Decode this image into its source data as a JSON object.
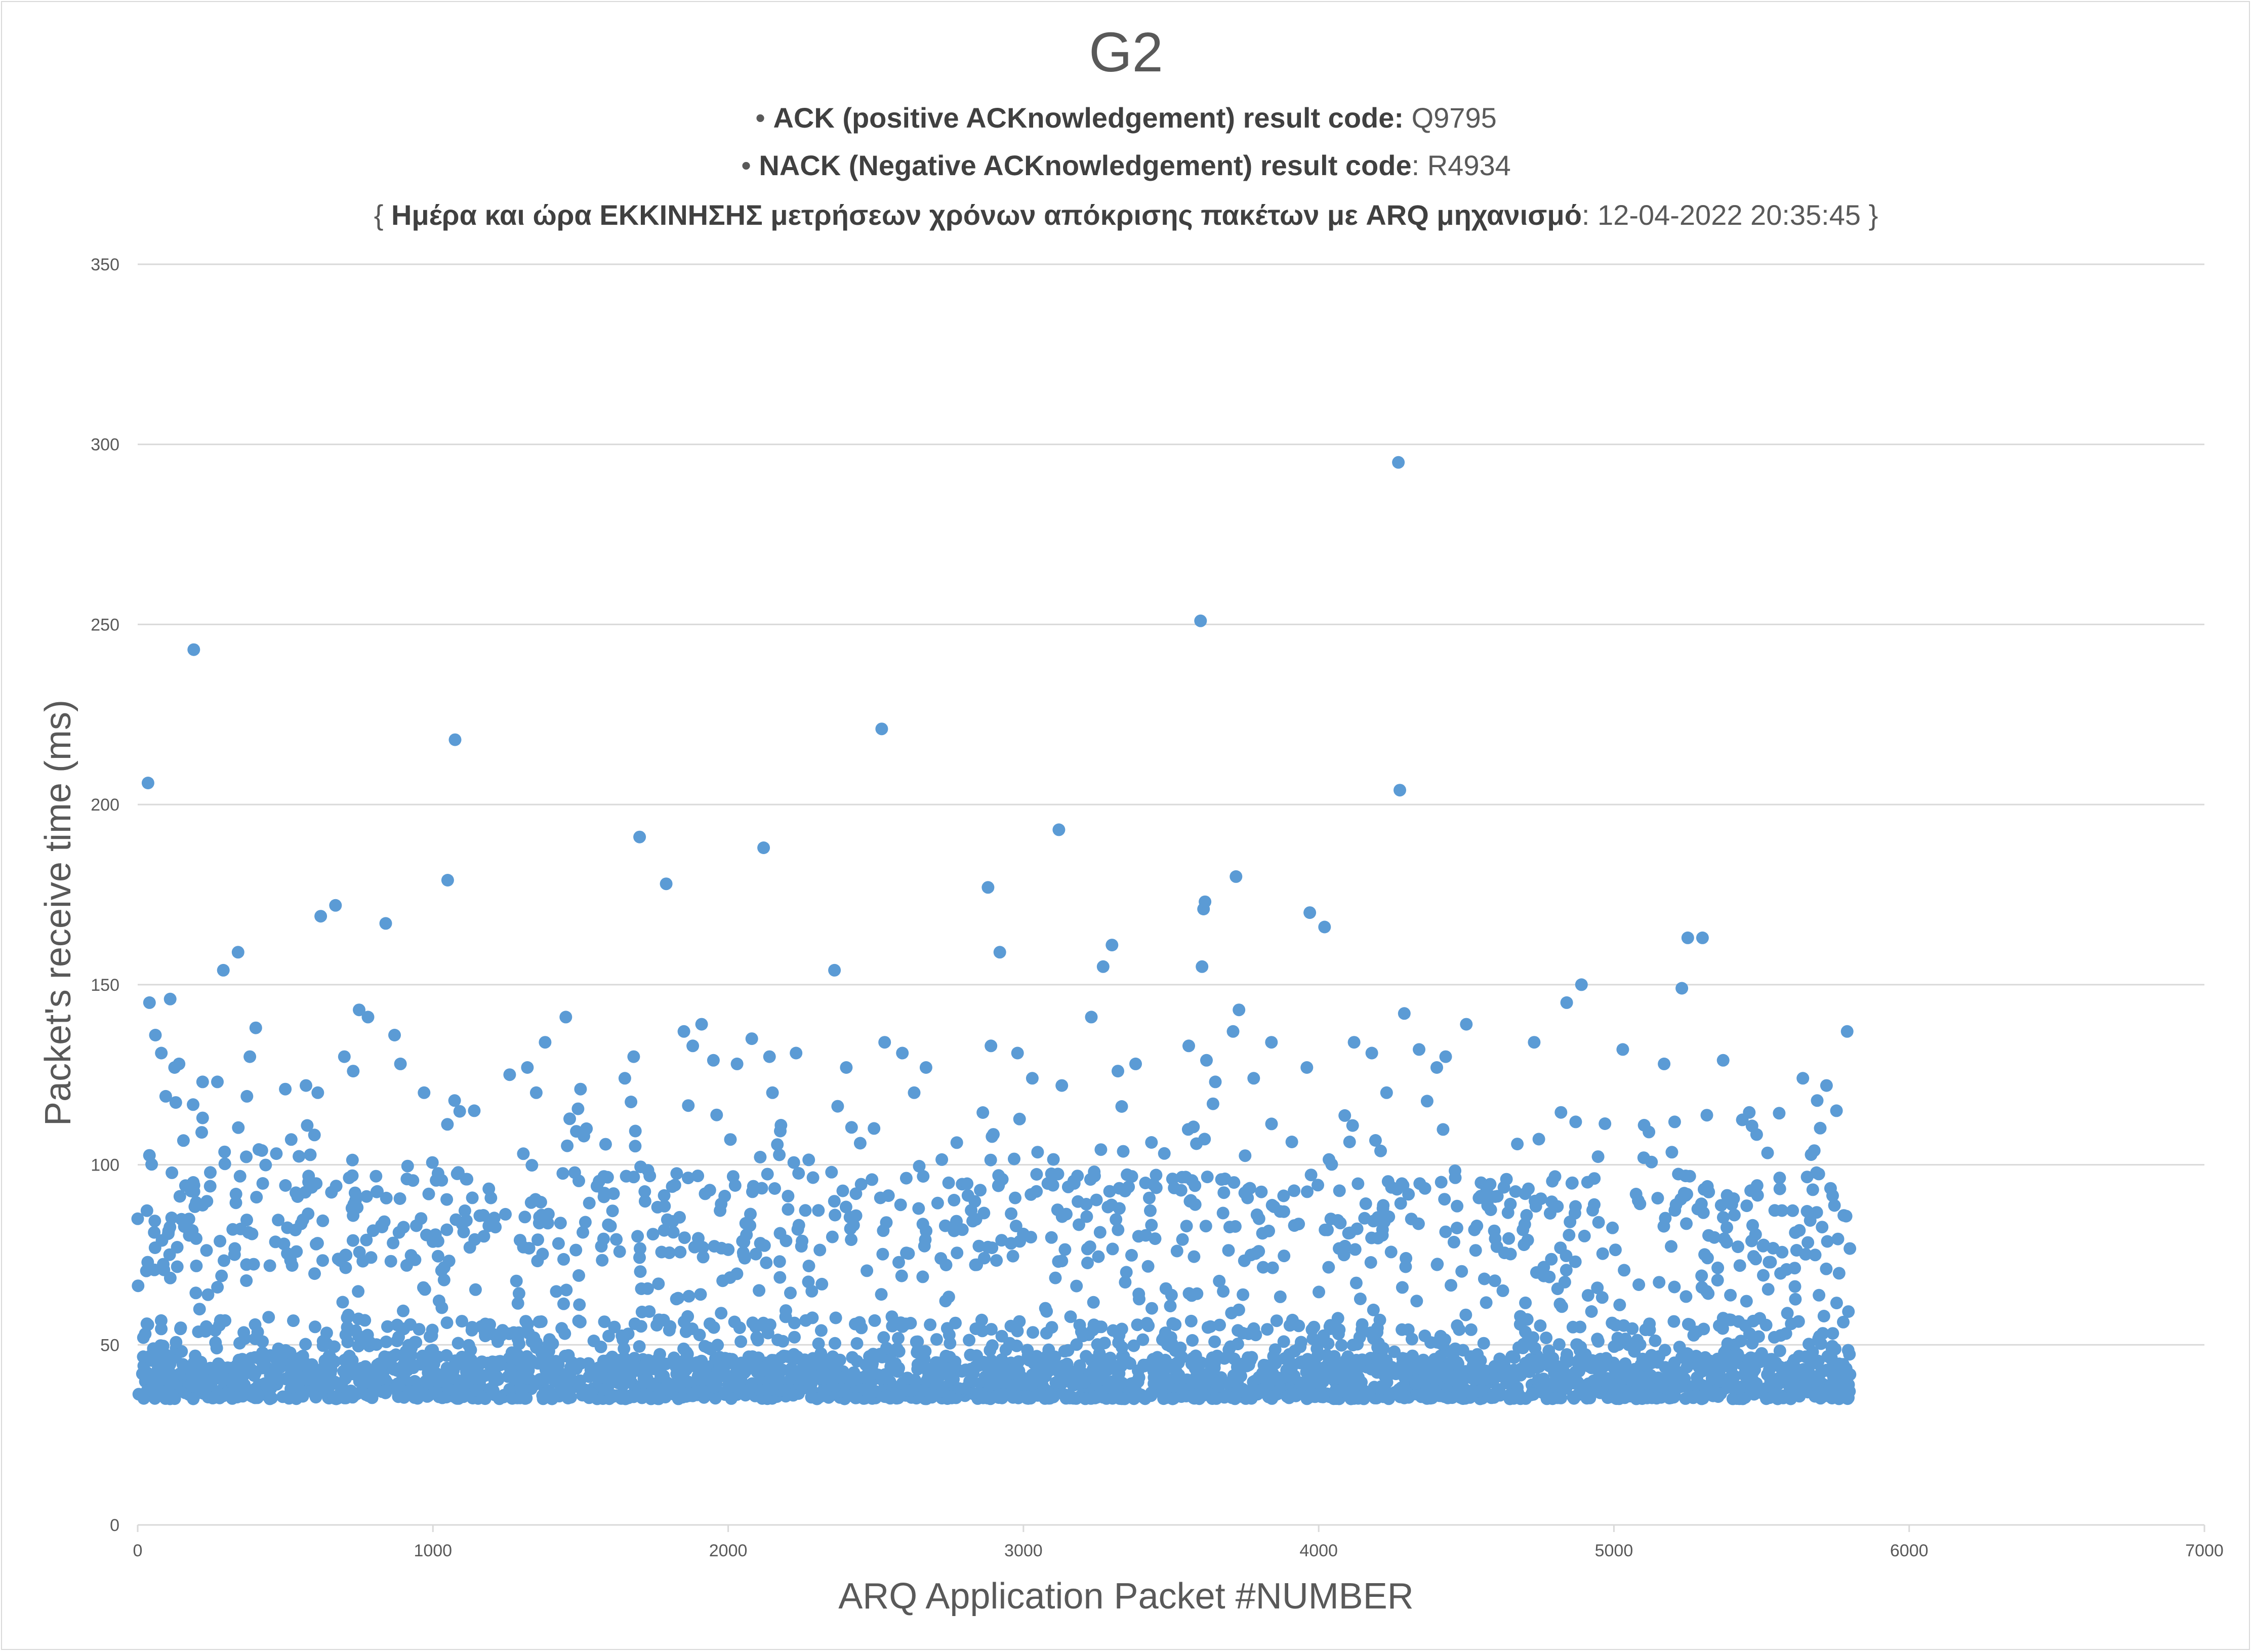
{
  "chart_data": {
    "type": "scatter",
    "title": "G2",
    "subtitle_lines": [
      {
        "bullet": "•",
        "label": "ACK (positive ACKnowledgement) result code:",
        "value": "Q9795"
      },
      {
        "bullet": "•",
        "label": "NACK (Negative ACKnowledgement) result code",
        "sep": ":",
        "value": "R4934"
      },
      {
        "open": "{",
        "label": "Ημέρα και ώρα ΕΚΚΙΝΗΣΗΣ μετρήσεων χρόνων απόκρισης πακέτων με ARQ μηχανισμό",
        "sep": ":",
        "value": "12-04-2022 20:35:45",
        "close": "}"
      }
    ],
    "xlabel": "ARQ Application Packet #NUMBER",
    "ylabel": "Packet's receive time (ms)",
    "xlim": [
      0,
      7000
    ],
    "ylim": [
      0,
      350
    ],
    "xticks": [
      "0",
      "1000",
      "2000",
      "3000",
      "4000",
      "5000",
      "6000",
      "7000"
    ],
    "yticks": [
      "0",
      "50",
      "100",
      "150",
      "200",
      "250",
      "300",
      "350"
    ],
    "grid": "horizontal",
    "point_color": "#5b9bd5",
    "grid_color": "#d9d9d9",
    "series": [
      {
        "outliers": [
          {
            "x": 0,
            "y": 85
          },
          {
            "x": 35,
            "y": 206
          },
          {
            "x": 40,
            "y": 145
          },
          {
            "x": 60,
            "y": 136
          },
          {
            "x": 80,
            "y": 131
          },
          {
            "x": 95,
            "y": 119
          },
          {
            "x": 110,
            "y": 146
          },
          {
            "x": 125,
            "y": 127
          },
          {
            "x": 140,
            "y": 128
          },
          {
            "x": 190,
            "y": 243
          },
          {
            "x": 220,
            "y": 113
          },
          {
            "x": 220,
            "y": 123
          },
          {
            "x": 270,
            "y": 123
          },
          {
            "x": 290,
            "y": 154
          },
          {
            "x": 340,
            "y": 159
          },
          {
            "x": 370,
            "y": 119
          },
          {
            "x": 380,
            "y": 130
          },
          {
            "x": 400,
            "y": 138
          },
          {
            "x": 500,
            "y": 121
          },
          {
            "x": 520,
            "y": 107
          },
          {
            "x": 570,
            "y": 122
          },
          {
            "x": 610,
            "y": 120
          },
          {
            "x": 620,
            "y": 169
          },
          {
            "x": 670,
            "y": 172
          },
          {
            "x": 700,
            "y": 130
          },
          {
            "x": 730,
            "y": 126
          },
          {
            "x": 750,
            "y": 143
          },
          {
            "x": 780,
            "y": 141
          },
          {
            "x": 840,
            "y": 167
          },
          {
            "x": 870,
            "y": 136
          },
          {
            "x": 890,
            "y": 128
          },
          {
            "x": 970,
            "y": 120
          },
          {
            "x": 1050,
            "y": 179
          },
          {
            "x": 1075,
            "y": 218
          },
          {
            "x": 1140,
            "y": 115
          },
          {
            "x": 1260,
            "y": 125
          },
          {
            "x": 1320,
            "y": 127
          },
          {
            "x": 1350,
            "y": 120
          },
          {
            "x": 1380,
            "y": 134
          },
          {
            "x": 1450,
            "y": 141
          },
          {
            "x": 1500,
            "y": 121
          },
          {
            "x": 1520,
            "y": 110
          },
          {
            "x": 1650,
            "y": 124
          },
          {
            "x": 1680,
            "y": 130
          },
          {
            "x": 1700,
            "y": 191
          },
          {
            "x": 1790,
            "y": 178
          },
          {
            "x": 1850,
            "y": 137
          },
          {
            "x": 1880,
            "y": 133
          },
          {
            "x": 1910,
            "y": 139
          },
          {
            "x": 1950,
            "y": 129
          },
          {
            "x": 2030,
            "y": 128
          },
          {
            "x": 2080,
            "y": 135
          },
          {
            "x": 2120,
            "y": 188
          },
          {
            "x": 2140,
            "y": 130
          },
          {
            "x": 2150,
            "y": 120
          },
          {
            "x": 2230,
            "y": 131
          },
          {
            "x": 2360,
            "y": 154
          },
          {
            "x": 2400,
            "y": 127
          },
          {
            "x": 2520,
            "y": 221
          },
          {
            "x": 2530,
            "y": 134
          },
          {
            "x": 2590,
            "y": 131
          },
          {
            "x": 2630,
            "y": 120
          },
          {
            "x": 2670,
            "y": 127
          },
          {
            "x": 2880,
            "y": 177
          },
          {
            "x": 2890,
            "y": 133
          },
          {
            "x": 2920,
            "y": 159
          },
          {
            "x": 2980,
            "y": 131
          },
          {
            "x": 3030,
            "y": 124
          },
          {
            "x": 3120,
            "y": 193
          },
          {
            "x": 3130,
            "y": 122
          },
          {
            "x": 3230,
            "y": 141
          },
          {
            "x": 3270,
            "y": 155
          },
          {
            "x": 3300,
            "y": 161
          },
          {
            "x": 3320,
            "y": 126
          },
          {
            "x": 3380,
            "y": 128
          },
          {
            "x": 3560,
            "y": 133
          },
          {
            "x": 3600,
            "y": 251
          },
          {
            "x": 3605,
            "y": 155
          },
          {
            "x": 3610,
            "y": 171
          },
          {
            "x": 3615,
            "y": 173
          },
          {
            "x": 3620,
            "y": 129
          },
          {
            "x": 3650,
            "y": 123
          },
          {
            "x": 3710,
            "y": 137
          },
          {
            "x": 3720,
            "y": 180
          },
          {
            "x": 3730,
            "y": 143
          },
          {
            "x": 3780,
            "y": 124
          },
          {
            "x": 3840,
            "y": 134
          },
          {
            "x": 3960,
            "y": 127
          },
          {
            "x": 3970,
            "y": 170
          },
          {
            "x": 4020,
            "y": 166
          },
          {
            "x": 4120,
            "y": 134
          },
          {
            "x": 4180,
            "y": 131
          },
          {
            "x": 4230,
            "y": 120
          },
          {
            "x": 4270,
            "y": 295
          },
          {
            "x": 4275,
            "y": 204
          },
          {
            "x": 4290,
            "y": 142
          },
          {
            "x": 4340,
            "y": 132
          },
          {
            "x": 4400,
            "y": 127
          },
          {
            "x": 4430,
            "y": 130
          },
          {
            "x": 4500,
            "y": 139
          },
          {
            "x": 4730,
            "y": 134
          },
          {
            "x": 4840,
            "y": 145
          },
          {
            "x": 4890,
            "y": 150
          },
          {
            "x": 5030,
            "y": 132
          },
          {
            "x": 5170,
            "y": 128
          },
          {
            "x": 5230,
            "y": 149
          },
          {
            "x": 5250,
            "y": 163
          },
          {
            "x": 5300,
            "y": 163
          },
          {
            "x": 5370,
            "y": 129
          },
          {
            "x": 5640,
            "y": 124
          },
          {
            "x": 5720,
            "y": 122
          },
          {
            "x": 5790,
            "y": 137
          }
        ],
        "bands": [
          {
            "y_min": 35,
            "y_max": 47,
            "count": 2400,
            "x_min": 0,
            "x_max": 5800
          },
          {
            "y_min": 47,
            "y_max": 57,
            "count": 420,
            "x_min": 0,
            "x_max": 5800
          },
          {
            "y_min": 57,
            "y_max": 72,
            "count": 160,
            "x_min": 0,
            "x_max": 5800
          },
          {
            "y_min": 72,
            "y_max": 98,
            "count": 620,
            "x_min": 0,
            "x_max": 5800
          },
          {
            "y_min": 98,
            "y_max": 118,
            "count": 110,
            "x_min": 0,
            "x_max": 5800
          }
        ]
      }
    ]
  }
}
